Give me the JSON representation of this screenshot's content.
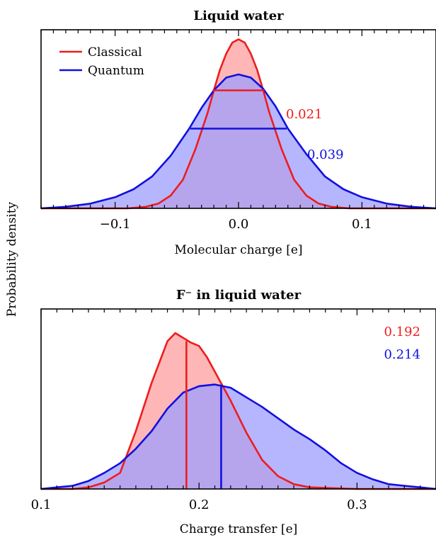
{
  "ylabel": "Probability density",
  "colors": {
    "classical": "#ee1c1c",
    "quantum": "#1010e0",
    "classical_fill": "#ff9e9e",
    "quantum_fill": "#9e9eff"
  },
  "chart_data": [
    {
      "type": "area",
      "title": "Liquid water",
      "xlabel": "Molecular charge [e]",
      "xlim": [
        -0.16,
        0.16
      ],
      "ylim": [
        0,
        1.12
      ],
      "grid": false,
      "xticks": [
        -0.1,
        0.0,
        0.1
      ],
      "xtick_labels": [
        "−0.1",
        "0.0",
        "0.1"
      ],
      "legend_position": "top-left",
      "series": [
        {
          "name": "Classical",
          "color": "#ee1c1c",
          "x": [
            -0.16,
            -0.09,
            -0.075,
            -0.065,
            -0.055,
            -0.045,
            -0.035,
            -0.025,
            -0.02,
            -0.015,
            -0.01,
            -0.005,
            0.0,
            0.005,
            0.01,
            0.015,
            0.02,
            0.025,
            0.035,
            0.045,
            0.055,
            0.065,
            0.075,
            0.09,
            0.16
          ],
          "y": [
            0.0,
            0.0,
            0.01,
            0.03,
            0.08,
            0.18,
            0.37,
            0.6,
            0.74,
            0.87,
            0.97,
            1.04,
            1.06,
            1.04,
            0.97,
            0.87,
            0.74,
            0.6,
            0.37,
            0.18,
            0.08,
            0.03,
            0.01,
            0.0,
            0.0
          ]
        },
        {
          "name": "Quantum",
          "color": "#1010e0",
          "x": [
            -0.16,
            -0.14,
            -0.12,
            -0.1,
            -0.085,
            -0.07,
            -0.055,
            -0.04,
            -0.03,
            -0.02,
            -0.01,
            0.0,
            0.01,
            0.02,
            0.03,
            0.04,
            0.055,
            0.07,
            0.085,
            0.1,
            0.12,
            0.14,
            0.16
          ],
          "y": [
            0.0,
            0.01,
            0.03,
            0.07,
            0.12,
            0.2,
            0.33,
            0.5,
            0.63,
            0.74,
            0.82,
            0.84,
            0.82,
            0.75,
            0.64,
            0.5,
            0.34,
            0.2,
            0.12,
            0.07,
            0.03,
            0.01,
            0.0
          ]
        }
      ],
      "annotations": [
        {
          "text": "0.021",
          "series": "Classical",
          "type": "width",
          "center": 0.0,
          "half_width": 0.021,
          "level": 0.74
        },
        {
          "text": "0.039",
          "series": "Quantum",
          "type": "width",
          "center": 0.0,
          "half_width": 0.039,
          "level": 0.5
        }
      ]
    },
    {
      "type": "area",
      "title": "F⁻ in liquid water",
      "xlabel": "Charge transfer [e]",
      "xlim": [
        0.1,
        0.35
      ],
      "ylim": [
        0,
        1.12
      ],
      "grid": false,
      "xticks": [
        0.1,
        0.2,
        0.3
      ],
      "xtick_labels": [
        "0.1",
        "0.2",
        "0.3"
      ],
      "series": [
        {
          "name": "Classical",
          "color": "#ee1c1c",
          "x": [
            0.1,
            0.12,
            0.13,
            0.14,
            0.15,
            0.16,
            0.17,
            0.18,
            0.185,
            0.19,
            0.195,
            0.2,
            0.205,
            0.21,
            0.22,
            0.23,
            0.24,
            0.25,
            0.26,
            0.27,
            0.3,
            0.35
          ],
          "y": [
            0.0,
            0.0,
            0.01,
            0.04,
            0.1,
            0.36,
            0.66,
            0.92,
            0.97,
            0.94,
            0.91,
            0.89,
            0.82,
            0.73,
            0.55,
            0.35,
            0.18,
            0.08,
            0.03,
            0.01,
            0.0,
            0.0
          ],
          "mean": 0.192,
          "mean_height": 0.92
        },
        {
          "name": "Quantum",
          "color": "#1010e0",
          "x": [
            0.1,
            0.11,
            0.12,
            0.13,
            0.14,
            0.15,
            0.16,
            0.17,
            0.18,
            0.19,
            0.2,
            0.21,
            0.22,
            0.23,
            0.24,
            0.25,
            0.26,
            0.27,
            0.28,
            0.29,
            0.3,
            0.31,
            0.32,
            0.33,
            0.34,
            0.35
          ],
          "y": [
            0.0,
            0.01,
            0.02,
            0.05,
            0.1,
            0.16,
            0.25,
            0.36,
            0.5,
            0.6,
            0.64,
            0.65,
            0.63,
            0.57,
            0.51,
            0.44,
            0.37,
            0.31,
            0.24,
            0.16,
            0.1,
            0.06,
            0.03,
            0.02,
            0.01,
            0.0
          ],
          "mean": 0.214,
          "mean_height": 0.65
        }
      ],
      "annotations": [
        {
          "text": "0.192",
          "series": "Classical",
          "type": "mean"
        },
        {
          "text": "0.214",
          "series": "Quantum",
          "type": "mean"
        }
      ]
    }
  ]
}
